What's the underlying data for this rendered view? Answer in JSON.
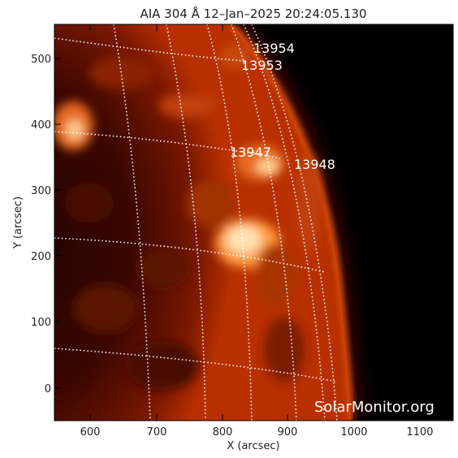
{
  "title": "AIA 304 Å 12–Jan–2025 20:24:05.130",
  "xlabel": "X (arcsec)",
  "ylabel": "Y (arcsec)",
  "xticks": [
    "600",
    "700",
    "800",
    "900",
    "1000",
    "1100"
  ],
  "yticks": [
    "0",
    "100",
    "200",
    "300",
    "400",
    "500"
  ],
  "regions": [
    "13954",
    "13953",
    "13947",
    "13948"
  ],
  "watermark": "SolarMonitor.org",
  "colors": {
    "background": "#000000",
    "sun_dark": "#2a0400",
    "sun_mid": "#b83000",
    "sun_bright": "#ffd090",
    "grid": "#ffffff"
  }
}
